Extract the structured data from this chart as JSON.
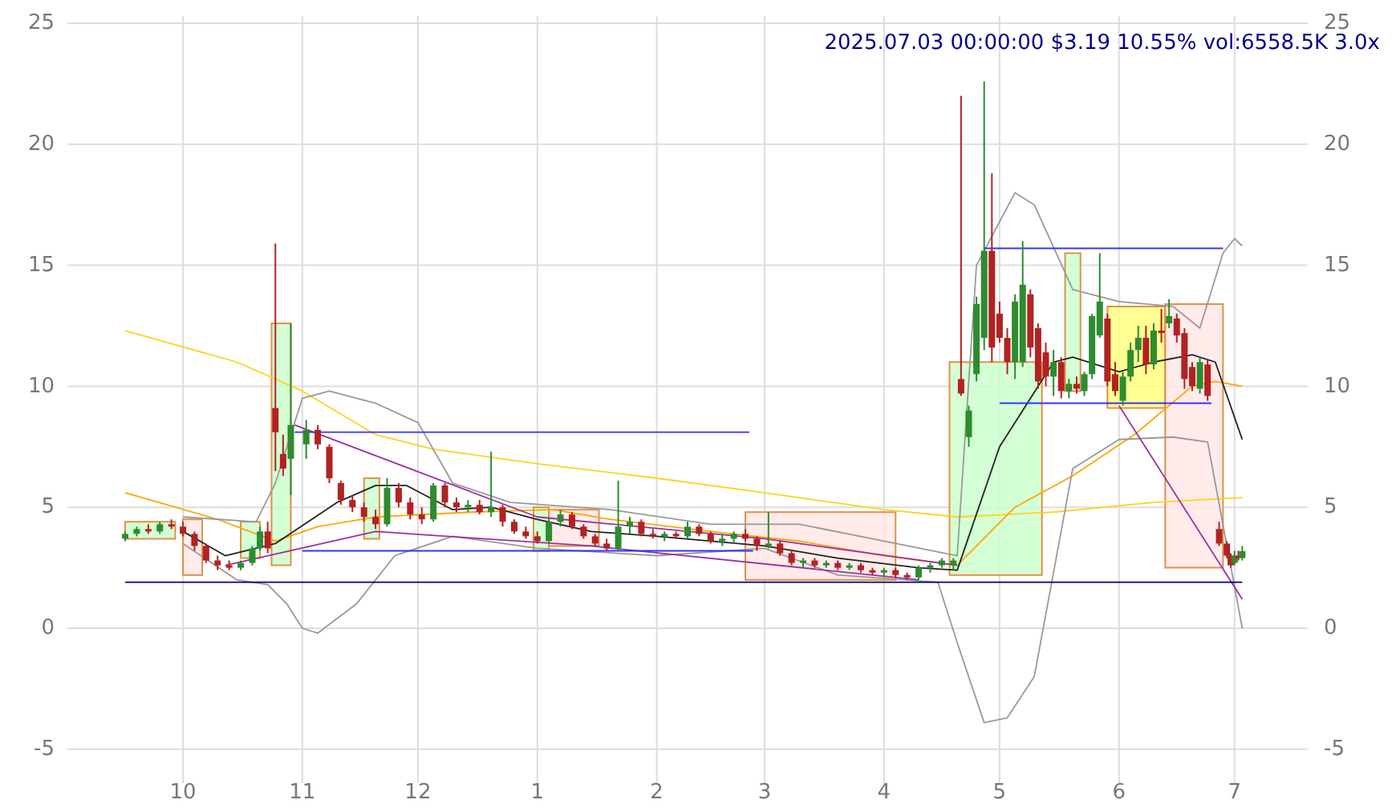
{
  "chart_data": {
    "type": "candlestick",
    "title": "2025.07.03 00:00:00 $3.19 10.55% vol:6558.5K 3.0x",
    "xlim": [
      "2024-09-01",
      "2025-07-20"
    ],
    "xticks": [
      {
        "value": "2024-10-01",
        "label": "10"
      },
      {
        "value": "2024-11-01",
        "label": "11"
      },
      {
        "value": "2024-12-01",
        "label": "12"
      },
      {
        "value": "2025-01-01",
        "label": "1"
      },
      {
        "value": "2025-02-01",
        "label": "2"
      },
      {
        "value": "2025-03-01",
        "label": "3"
      },
      {
        "value": "2025-04-01",
        "label": "4"
      },
      {
        "value": "2025-05-01",
        "label": "5"
      },
      {
        "value": "2025-06-01",
        "label": "6"
      },
      {
        "value": "2025-07-01",
        "label": "7"
      }
    ],
    "ylim": [
      -6.4,
      25.3
    ],
    "yticks": [
      -5,
      0,
      5,
      10,
      15,
      20,
      25
    ],
    "y2lim": [
      -6.4,
      25.3
    ],
    "y2ticks": [
      -5,
      0,
      5,
      10,
      15,
      20,
      25
    ],
    "grid": true,
    "x": [
      "2024-09-16",
      "2024-09-19",
      "2024-09-22",
      "2024-09-25",
      "2024-09-28",
      "2024-10-01",
      "2024-10-04",
      "2024-10-07",
      "2024-10-10",
      "2024-10-13",
      "2024-10-16",
      "2024-10-19",
      "2024-10-21",
      "2024-10-23",
      "2024-10-25",
      "2024-10-27",
      "2024-10-29",
      "2024-11-02",
      "2024-11-05",
      "2024-11-08",
      "2024-11-11",
      "2024-11-14",
      "2024-11-17",
      "2024-11-20",
      "2024-11-23",
      "2024-11-26",
      "2024-11-29",
      "2024-12-02",
      "2024-12-05",
      "2024-12-08",
      "2024-12-11",
      "2024-12-14",
      "2024-12-17",
      "2024-12-20",
      "2024-12-23",
      "2024-12-26",
      "2024-12-29",
      "2025-01-01",
      "2025-01-04",
      "2025-01-07",
      "2025-01-10",
      "2025-01-13",
      "2025-01-16",
      "2025-01-19",
      "2025-01-22",
      "2025-01-25",
      "2025-01-28",
      "2025-01-31",
      "2025-02-03",
      "2025-02-06",
      "2025-02-09",
      "2025-02-12",
      "2025-02-15",
      "2025-02-18",
      "2025-02-21",
      "2025-02-24",
      "2025-02-27",
      "2025-03-02",
      "2025-03-05",
      "2025-03-08",
      "2025-03-11",
      "2025-03-14",
      "2025-03-17",
      "2025-03-20",
      "2025-03-23",
      "2025-03-26",
      "2025-03-29",
      "2025-04-01",
      "2025-04-04",
      "2025-04-07",
      "2025-04-10",
      "2025-04-13",
      "2025-04-16",
      "2025-04-19",
      "2025-04-21",
      "2025-04-23",
      "2025-04-25",
      "2025-04-27",
      "2025-04-29",
      "2025-05-01",
      "2025-05-03",
      "2025-05-05",
      "2025-05-07",
      "2025-05-09",
      "2025-05-11",
      "2025-05-13",
      "2025-05-15",
      "2025-05-17",
      "2025-05-19",
      "2025-05-21",
      "2025-05-23",
      "2025-05-25",
      "2025-05-27",
      "2025-05-29",
      "2025-05-31",
      "2025-06-02",
      "2025-06-04",
      "2025-06-06",
      "2025-06-08",
      "2025-06-10",
      "2025-06-12",
      "2025-06-14",
      "2025-06-16",
      "2025-06-18",
      "2025-06-20",
      "2025-06-22",
      "2025-06-24",
      "2025-06-27",
      "2025-06-29",
      "2025-06-30",
      "2025-07-01",
      "2025-07-02",
      "2025-07-03"
    ],
    "ohlc": [
      [
        3.7,
        4.0,
        3.6,
        3.9
      ],
      [
        3.9,
        4.2,
        3.8,
        4.1
      ],
      [
        4.1,
        4.3,
        3.9,
        4.0
      ],
      [
        4.0,
        4.4,
        3.9,
        4.3
      ],
      [
        4.3,
        4.5,
        4.1,
        4.2
      ],
      [
        4.2,
        4.4,
        3.8,
        3.9
      ],
      [
        3.9,
        4.0,
        3.2,
        3.4
      ],
      [
        3.4,
        3.5,
        2.7,
        2.8
      ],
      [
        2.8,
        3.0,
        2.4,
        2.6
      ],
      [
        2.6,
        2.8,
        2.4,
        2.5
      ],
      [
        2.5,
        2.8,
        2.4,
        2.7
      ],
      [
        2.7,
        3.4,
        2.6,
        3.3
      ],
      [
        3.3,
        4.2,
        3.2,
        4.0
      ],
      [
        4.0,
        4.4,
        3.1,
        3.3
      ],
      [
        9.1,
        15.9,
        6.5,
        8.1
      ],
      [
        7.2,
        8.0,
        6.3,
        6.6
      ],
      [
        7.0,
        12.6,
        5.5,
        8.4
      ],
      [
        7.6,
        8.6,
        7.0,
        8.2
      ],
      [
        8.2,
        8.4,
        7.4,
        7.6
      ],
      [
        7.5,
        7.6,
        6.0,
        6.2
      ],
      [
        6.0,
        6.1,
        5.1,
        5.3
      ],
      [
        5.3,
        5.5,
        4.8,
        5.0
      ],
      [
        5.0,
        5.2,
        4.4,
        4.6
      ],
      [
        4.6,
        4.9,
        4.1,
        4.3
      ],
      [
        4.3,
        6.2,
        4.2,
        5.8
      ],
      [
        5.8,
        6.0,
        5.0,
        5.2
      ],
      [
        5.2,
        5.4,
        4.5,
        4.7
      ],
      [
        4.7,
        5.0,
        4.3,
        4.5
      ],
      [
        4.5,
        6.0,
        4.4,
        5.9
      ],
      [
        5.9,
        6.0,
        5.0,
        5.2
      ],
      [
        5.2,
        5.4,
        4.8,
        5.0
      ],
      [
        5.0,
        5.3,
        4.8,
        5.1
      ],
      [
        5.1,
        5.3,
        4.7,
        4.8
      ],
      [
        4.8,
        7.3,
        4.6,
        5.0
      ],
      [
        5.0,
        5.1,
        4.2,
        4.4
      ],
      [
        4.4,
        4.5,
        3.9,
        4.0
      ],
      [
        4.0,
        4.2,
        3.7,
        3.8
      ],
      [
        3.8,
        4.0,
        3.5,
        3.6
      ],
      [
        3.6,
        4.5,
        3.5,
        4.4
      ],
      [
        4.4,
        4.9,
        4.2,
        4.7
      ],
      [
        4.7,
        4.8,
        4.1,
        4.2
      ],
      [
        4.2,
        4.3,
        3.7,
        3.8
      ],
      [
        3.8,
        3.9,
        3.4,
        3.5
      ],
      [
        3.5,
        3.7,
        3.2,
        3.3
      ],
      [
        3.3,
        6.1,
        3.2,
        4.2
      ],
      [
        4.2,
        4.6,
        3.9,
        4.4
      ],
      [
        4.4,
        4.5,
        3.8,
        3.9
      ],
      [
        3.9,
        4.1,
        3.7,
        3.8
      ],
      [
        3.8,
        4.0,
        3.6,
        3.9
      ],
      [
        3.9,
        4.0,
        3.7,
        3.8
      ],
      [
        3.8,
        4.4,
        3.7,
        4.2
      ],
      [
        4.2,
        4.3,
        3.8,
        3.9
      ],
      [
        3.9,
        4.0,
        3.5,
        3.6
      ],
      [
        3.6,
        3.9,
        3.4,
        3.7
      ],
      [
        3.7,
        4.0,
        3.5,
        3.9
      ],
      [
        3.9,
        4.1,
        3.6,
        3.7
      ],
      [
        3.7,
        3.8,
        3.2,
        3.4
      ],
      [
        3.4,
        4.8,
        3.3,
        3.5
      ],
      [
        3.5,
        3.6,
        3.0,
        3.1
      ],
      [
        3.1,
        3.2,
        2.6,
        2.7
      ],
      [
        2.7,
        2.9,
        2.5,
        2.8
      ],
      [
        2.8,
        2.9,
        2.5,
        2.6
      ],
      [
        2.6,
        2.8,
        2.5,
        2.7
      ],
      [
        2.7,
        2.8,
        2.4,
        2.5
      ],
      [
        2.5,
        2.7,
        2.4,
        2.6
      ],
      [
        2.6,
        2.7,
        2.3,
        2.4
      ],
      [
        2.4,
        2.5,
        2.2,
        2.3
      ],
      [
        2.3,
        2.5,
        2.1,
        2.4
      ],
      [
        2.4,
        2.5,
        2.1,
        2.2
      ],
      [
        2.2,
        2.3,
        2.0,
        2.1
      ],
      [
        2.1,
        2.6,
        2.0,
        2.5
      ],
      [
        2.5,
        2.7,
        2.3,
        2.6
      ],
      [
        2.6,
        2.9,
        2.5,
        2.8
      ],
      [
        2.6,
        2.9,
        2.4,
        2.8
      ],
      [
        10.3,
        22.0,
        9.6,
        9.7
      ],
      [
        7.9,
        9.2,
        7.5,
        9.0
      ],
      [
        10.5,
        13.7,
        10.2,
        13.4
      ],
      [
        12.0,
        22.6,
        11.5,
        15.6
      ],
      [
        15.6,
        18.8,
        11.0,
        11.6
      ],
      [
        13.0,
        13.5,
        11.8,
        12.0
      ],
      [
        12.0,
        12.4,
        10.5,
        11.0
      ],
      [
        11.0,
        13.8,
        10.3,
        13.5
      ],
      [
        11.0,
        16.0,
        10.8,
        14.2
      ],
      [
        13.8,
        14.0,
        11.2,
        11.6
      ],
      [
        12.4,
        12.6,
        9.9,
        10.2
      ],
      [
        11.4,
        11.8,
        10.0,
        10.4
      ],
      [
        10.4,
        11.5,
        9.6,
        11.0
      ],
      [
        11.0,
        11.2,
        9.5,
        9.8
      ],
      [
        9.8,
        10.3,
        9.5,
        10.1
      ],
      [
        10.1,
        10.4,
        9.7,
        9.9
      ],
      [
        9.8,
        10.6,
        9.6,
        10.5
      ],
      [
        10.5,
        13.0,
        10.3,
        12.9
      ],
      [
        12.1,
        15.5,
        12.0,
        13.5
      ],
      [
        12.8,
        13.0,
        10.0,
        10.2
      ],
      [
        10.5,
        11.0,
        9.6,
        9.8
      ],
      [
        9.4,
        10.6,
        9.2,
        10.4
      ],
      [
        10.4,
        11.8,
        10.2,
        11.5
      ],
      [
        11.5,
        12.5,
        11.0,
        12.0
      ],
      [
        12.0,
        12.5,
        10.5,
        10.9
      ],
      [
        10.9,
        12.6,
        10.7,
        12.3
      ],
      [
        12.3,
        13.2,
        11.8,
        12.2
      ],
      [
        12.6,
        13.6,
        12.4,
        12.9
      ],
      [
        12.8,
        13.0,
        11.8,
        12.1
      ],
      [
        12.2,
        12.4,
        9.9,
        10.3
      ],
      [
        10.8,
        11.0,
        9.8,
        10.0
      ],
      [
        9.9,
        11.2,
        9.7,
        11.0
      ],
      [
        10.9,
        11.1,
        9.4,
        9.6
      ],
      [
        4.1,
        4.4,
        3.4,
        3.5
      ],
      [
        3.5,
        3.6,
        2.9,
        3.0
      ],
      [
        3.0,
        3.1,
        2.5,
        2.6
      ],
      [
        2.7,
        3.2,
        2.6,
        3.0
      ],
      [
        3.0,
        3.2,
        2.8,
        2.9
      ],
      [
        2.9,
        3.4,
        2.8,
        3.19
      ]
    ],
    "series": [
      {
        "type": "area",
        "color": "#ccffcc",
        "x": [
          "2024-09-16",
          "2024-09-16",
          "2024-09-29",
          "2024-09-29"
        ],
        "values": [
          3.7,
          4.4,
          4.4,
          3.7
        ]
      },
      {
        "type": "area",
        "color": "#ffe8e6",
        "x": [
          "2024-10-01",
          "2024-10-01",
          "2024-10-06",
          "2024-10-06"
        ],
        "values": [
          2.2,
          4.5,
          4.5,
          2.2
        ]
      },
      {
        "type": "area",
        "color": "#ccffcc",
        "x": [
          "2024-10-16",
          "2024-10-16",
          "2024-10-21",
          "2024-10-21"
        ],
        "values": [
          2.9,
          4.4,
          4.4,
          2.9
        ]
      },
      {
        "type": "area",
        "color": "#ccffcc",
        "x": [
          "2024-10-24",
          "2024-10-24",
          "2024-10-29",
          "2024-10-29"
        ],
        "values": [
          2.6,
          12.6,
          12.6,
          2.6
        ]
      },
      {
        "type": "area",
        "color": "#ccffcc",
        "x": [
          "2024-11-17",
          "2024-11-17",
          "2024-11-21",
          "2024-11-21"
        ],
        "values": [
          3.7,
          6.2,
          6.2,
          3.7
        ]
      },
      {
        "type": "area",
        "color": "#ccffcc",
        "x": [
          "2024-12-31",
          "2024-12-31",
          "2025-01-04",
          "2025-01-04"
        ],
        "values": [
          3.2,
          5.0,
          5.0,
          3.2
        ]
      },
      {
        "type": "area",
        "color": "#ffe8e6",
        "x": [
          "2025-01-04",
          "2025-01-04",
          "2025-01-17",
          "2025-01-17"
        ],
        "values": [
          3.4,
          4.9,
          4.9,
          3.4
        ]
      },
      {
        "type": "area",
        "color": "#ffe8e6",
        "x": [
          "2025-02-24",
          "2025-02-24",
          "2025-04-04",
          "2025-04-04"
        ],
        "values": [
          2.0,
          4.8,
          4.8,
          2.0
        ]
      },
      {
        "type": "area",
        "color": "#ccffcc",
        "x": [
          "2025-04-18",
          "2025-04-18",
          "2025-05-12",
          "2025-05-12"
        ],
        "values": [
          2.2,
          11.0,
          11.0,
          2.2
        ]
      },
      {
        "type": "area",
        "color": "#ccffcc",
        "x": [
          "2025-05-18",
          "2025-05-18",
          "2025-05-22",
          "2025-05-22"
        ],
        "values": [
          9.8,
          15.5,
          15.5,
          9.8
        ]
      },
      {
        "type": "area",
        "color": "#ffff80",
        "x": [
          "2025-05-29",
          "2025-05-29",
          "2025-06-13",
          "2025-06-13"
        ],
        "values": [
          9.1,
          13.3,
          13.3,
          9.1
        ]
      },
      {
        "type": "area",
        "color": "#ffe8e6",
        "x": [
          "2025-06-13",
          "2025-06-13",
          "2025-06-28",
          "2025-06-28"
        ],
        "values": [
          2.5,
          13.4,
          13.4,
          2.5
        ]
      },
      {
        "type": "line",
        "color": "#ffd21f",
        "x": [
          "2024-09-16",
          "2024-10-15",
          "2024-11-01",
          "2024-11-20",
          "2024-12-05",
          "2025-01-01",
          "2025-02-01",
          "2025-03-01",
          "2025-04-01",
          "2025-04-20",
          "2025-05-15",
          "2025-06-10",
          "2025-07-03"
        ],
        "values": [
          12.3,
          11.0,
          9.8,
          8.0,
          7.4,
          6.8,
          6.2,
          5.6,
          4.9,
          4.6,
          4.8,
          5.2,
          5.4
        ]
      },
      {
        "type": "line",
        "color": "#ffa500",
        "x": [
          "2024-09-16",
          "2024-10-10",
          "2024-10-20",
          "2024-10-25",
          "2024-11-05",
          "2024-11-20",
          "2024-12-15",
          "2025-01-05",
          "2025-01-20",
          "2025-02-15",
          "2025-03-10",
          "2025-04-01",
          "2025-04-20",
          "2025-05-05",
          "2025-05-20",
          "2025-06-05",
          "2025-06-20",
          "2025-06-26",
          "2025-07-03"
        ],
        "values": [
          5.6,
          4.5,
          3.9,
          3.6,
          4.2,
          4.6,
          4.8,
          4.9,
          4.5,
          4.0,
          3.6,
          3.0,
          2.6,
          5.0,
          6.3,
          8.0,
          10.0,
          10.2,
          10.0
        ]
      },
      {
        "type": "line",
        "color": "#222222",
        "x": [
          "2024-10-01",
          "2024-10-12",
          "2024-10-25",
          "2024-11-10",
          "2024-11-20",
          "2024-11-28",
          "2024-12-10",
          "2024-12-20",
          "2025-01-01",
          "2025-01-15",
          "2025-02-01",
          "2025-03-01",
          "2025-03-20",
          "2025-04-10",
          "2025-04-20",
          "2025-05-01",
          "2025-05-15",
          "2025-05-20",
          "2025-06-01",
          "2025-06-10",
          "2025-06-20",
          "2025-06-26",
          "2025-07-03"
        ],
        "values": [
          4.0,
          3.0,
          3.5,
          5.2,
          5.9,
          5.9,
          4.9,
          5.0,
          4.5,
          4.0,
          3.8,
          3.4,
          2.9,
          2.5,
          2.4,
          7.5,
          11.0,
          11.2,
          10.6,
          11.0,
          11.3,
          11.0,
          7.8
        ]
      },
      {
        "type": "line",
        "color": "#999999",
        "x": [
          "2024-10-01",
          "2024-10-20",
          "2024-10-25",
          "2024-11-01",
          "2024-11-08",
          "2024-11-20",
          "2024-12-01",
          "2024-12-10",
          "2024-12-25",
          "2025-01-20",
          "2025-02-15",
          "2025-03-10",
          "2025-04-01",
          "2025-04-20",
          "2025-04-25",
          "2025-05-05",
          "2025-05-10",
          "2025-05-20",
          "2025-06-01",
          "2025-06-15",
          "2025-06-22",
          "2025-06-28",
          "2025-07-01",
          "2025-07-03"
        ],
        "values": [
          4.6,
          4.4,
          6.0,
          9.5,
          9.8,
          9.3,
          8.5,
          6.0,
          5.2,
          4.9,
          4.3,
          4.3,
          3.6,
          3.0,
          15.0,
          18.0,
          17.5,
          14.0,
          13.5,
          13.3,
          12.4,
          15.5,
          16.1,
          15.8
        ]
      },
      {
        "type": "line",
        "color": "#999999",
        "x": [
          "2024-10-01",
          "2024-10-15",
          "2024-10-23",
          "2024-10-28",
          "2024-11-01",
          "2024-11-05",
          "2024-11-15",
          "2024-11-25",
          "2024-12-10",
          "2025-01-01",
          "2025-02-01",
          "2025-03-01",
          "2025-03-20",
          "2025-04-15",
          "2025-04-20",
          "2025-04-27",
          "2025-05-03",
          "2025-05-10",
          "2025-05-20",
          "2025-06-01",
          "2025-06-15",
          "2025-06-24",
          "2025-07-03"
        ],
        "values": [
          3.5,
          2.0,
          1.8,
          1.0,
          0.0,
          -0.2,
          1.0,
          3.0,
          3.8,
          3.3,
          3.0,
          3.3,
          2.2,
          1.9,
          -0.6,
          -3.9,
          -3.7,
          -2.0,
          6.6,
          7.8,
          7.9,
          7.7,
          0.0
        ]
      },
      {
        "type": "line",
        "color": "#9b30a0",
        "x": [
          "2024-10-30",
          "2025-01-01",
          "2025-03-01",
          "2025-04-20"
        ],
        "values": [
          8.4,
          4.6,
          3.7,
          2.6
        ]
      },
      {
        "type": "line",
        "color": "#9b30a0",
        "x": [
          "2024-10-12",
          "2024-11-20",
          "2025-01-15",
          "2025-04-10"
        ],
        "values": [
          2.6,
          4.0,
          3.4,
          2.0
        ]
      },
      {
        "type": "line",
        "color": "#9b30a0",
        "x": [
          "2025-06-01",
          "2025-07-03"
        ],
        "values": [
          9.2,
          1.2
        ]
      },
      {
        "type": "line",
        "color": "#3333ff",
        "x": [
          "2024-10-30",
          "2025-02-25"
        ],
        "values": [
          8.1,
          8.1
        ]
      },
      {
        "type": "line",
        "color": "#3333ff",
        "x": [
          "2024-11-01",
          "2025-02-26"
        ],
        "values": [
          3.2,
          3.2
        ]
      },
      {
        "type": "line",
        "color": "#3333ff",
        "x": [
          "2025-04-27",
          "2025-06-28"
        ],
        "values": [
          15.7,
          15.7
        ]
      },
      {
        "type": "line",
        "color": "#3333ff",
        "x": [
          "2025-05-01",
          "2025-06-25"
        ],
        "values": [
          9.3,
          9.3
        ]
      },
      {
        "type": "line",
        "color": "#000080",
        "x": [
          "2024-09-16",
          "2025-07-03"
        ],
        "values": [
          1.9,
          1.9
        ]
      }
    ]
  }
}
